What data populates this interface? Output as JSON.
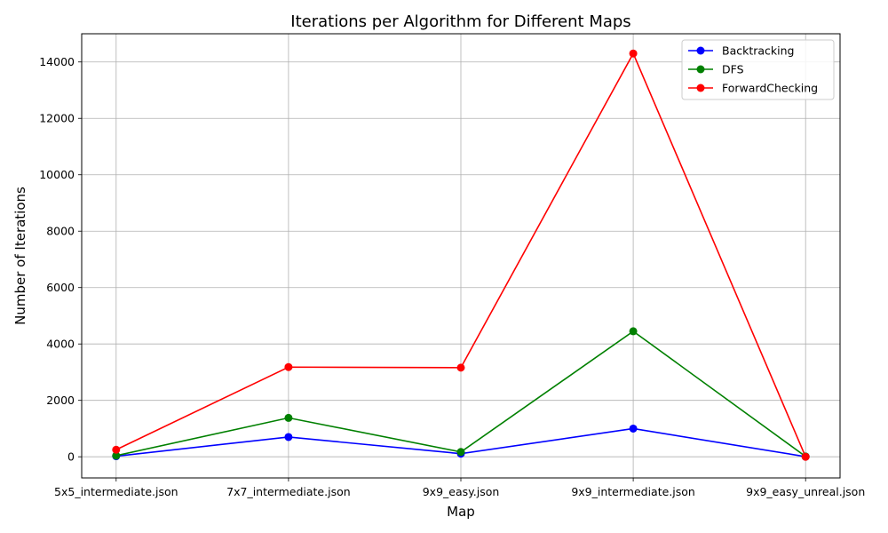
{
  "chart_data": {
    "type": "line",
    "title": "Iterations per Algorithm for Different Maps",
    "xlabel": "Map",
    "ylabel": "Number of Iterations",
    "categories": [
      "5x5_intermediate.json",
      "7x7_intermediate.json",
      "9x9_easy.json",
      "9x9_intermediate.json",
      "9x9_easy_unreal.json"
    ],
    "ylim": [
      -750,
      15000
    ],
    "yticks": [
      0,
      2000,
      4000,
      6000,
      8000,
      10000,
      12000,
      14000
    ],
    "grid": true,
    "legend_position": "top-right",
    "series": [
      {
        "name": "Backtracking",
        "color": "#0000ff",
        "values": [
          20,
          700,
          110,
          1000,
          5
        ]
      },
      {
        "name": "DFS",
        "color": "#008000",
        "values": [
          40,
          1380,
          170,
          4450,
          10
        ]
      },
      {
        "name": "ForwardChecking",
        "color": "#ff0000",
        "values": [
          250,
          3180,
          3160,
          14300,
          0
        ]
      }
    ]
  }
}
